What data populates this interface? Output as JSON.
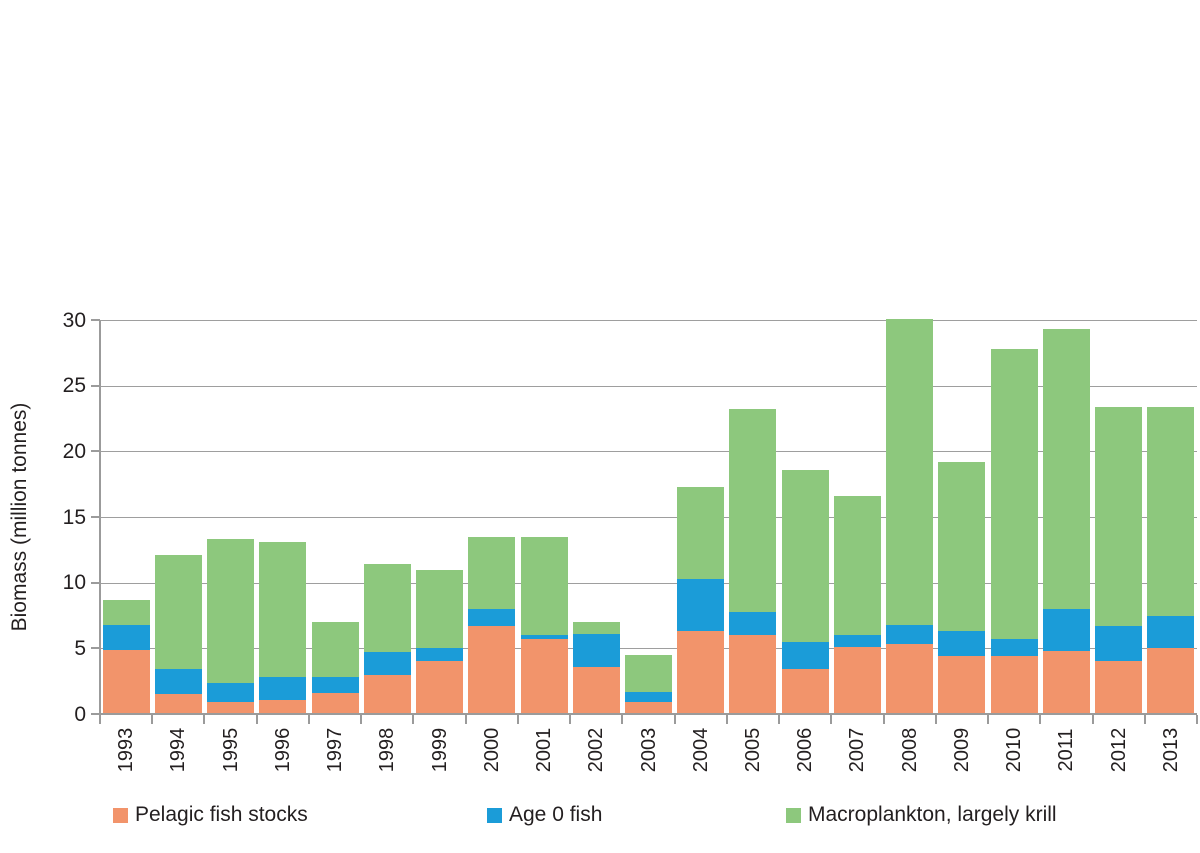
{
  "chart_data": {
    "type": "bar",
    "stacked": true,
    "title": "",
    "xlabel": "",
    "ylabel": "Biomass (million tonnes)",
    "ylim": [
      0,
      30
    ],
    "yticks": [
      0,
      5,
      10,
      15,
      20,
      25,
      30
    ],
    "grid": "horizontal",
    "legend_position": "bottom",
    "categories": [
      "1993",
      "1994",
      "1995",
      "1996",
      "1997",
      "1998",
      "1999",
      "2000",
      "2001",
      "2002",
      "2003",
      "2004",
      "2005",
      "2006",
      "2007",
      "2008",
      "2009",
      "2010",
      "2011",
      "2012",
      "2013"
    ],
    "series": [
      {
        "name": "Pelagic fish stocks",
        "color": "#F2946B",
        "values": [
          4.9,
          1.5,
          0.9,
          1.1,
          1.6,
          3.0,
          4.0,
          6.7,
          5.7,
          3.6,
          0.9,
          6.3,
          6.0,
          3.4,
          5.1,
          5.3,
          4.4,
          4.4,
          4.8,
          4.0,
          5.0
        ]
      },
      {
        "name": "Age 0 fish",
        "color": "#1B9CD8",
        "values": [
          1.9,
          1.9,
          1.5,
          1.7,
          1.2,
          1.7,
          1.0,
          1.3,
          0.3,
          2.5,
          0.8,
          4.0,
          1.8,
          2.1,
          0.9,
          1.5,
          1.9,
          1.3,
          3.2,
          2.7,
          2.5
        ]
      },
      {
        "name": "Macroplankton, largely krill",
        "color": "#8DC87D",
        "values": [
          1.9,
          8.7,
          10.9,
          10.3,
          4.2,
          6.7,
          6.0,
          5.5,
          7.5,
          0.9,
          2.8,
          7.0,
          15.4,
          13.1,
          10.6,
          23.3,
          12.9,
          22.1,
          21.3,
          16.7,
          15.9
        ]
      }
    ]
  },
  "styles": {
    "axis_color": "#9B9B9B",
    "grid_color": "#9E9E9E",
    "text_color": "#231F20",
    "background": "#FFFFFF"
  }
}
